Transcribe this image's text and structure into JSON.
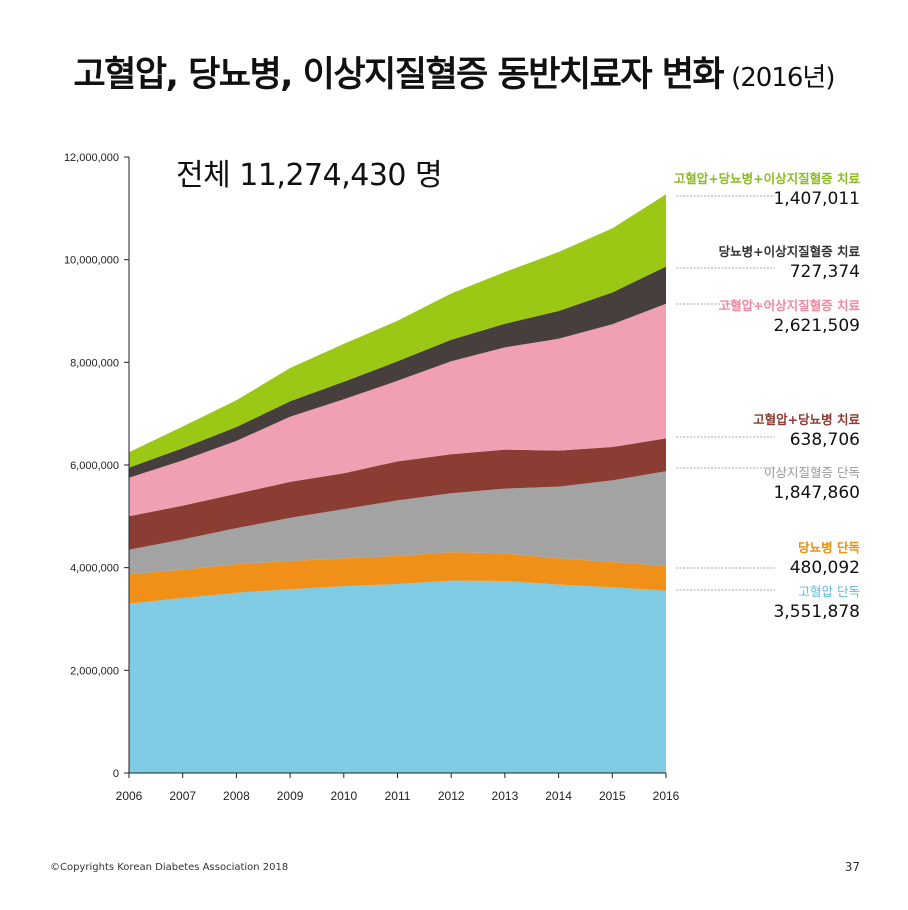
{
  "title": {
    "main": "고혈압, 당뇨병, 이상지질혈증 동반치료자 변화",
    "year": "(2016년)"
  },
  "total_label": "전체 11,274,430 명",
  "footer": "©Copyrights Korean Diabetes Association 2018",
  "page_number": "37",
  "chart_data": {
    "type": "area",
    "stacked": true,
    "x": [
      2006,
      2007,
      2008,
      2009,
      2010,
      2011,
      2012,
      2013,
      2014,
      2015,
      2016
    ],
    "ylim": [
      0,
      12000000
    ],
    "yticks": [
      "0",
      "2,000,000",
      "4,000,000",
      "6,000,000",
      "8,000,000",
      "10,000,000",
      "12,000,000"
    ],
    "grid": false,
    "legend_position": "right",
    "series": [
      {
        "name": "고혈압 단독",
        "value_label": "3,551,878",
        "color": "#7ecbe3",
        "values": [
          3300000,
          3410000,
          3510000,
          3580000,
          3640000,
          3680000,
          3750000,
          3740000,
          3670000,
          3620000,
          3551878
        ]
      },
      {
        "name": "당뇨병 단독",
        "value_label": "480,092",
        "color": "#f09018",
        "values": [
          570000,
          550000,
          560000,
          550000,
          540000,
          550000,
          550000,
          540000,
          510000,
          490000,
          480092
        ]
      },
      {
        "name": "이상지질혈증 단독",
        "value_label": "1,847,860",
        "color": "#a3a3a3",
        "values": [
          480000,
          590000,
          700000,
          840000,
          960000,
          1080000,
          1150000,
          1260000,
          1400000,
          1590000,
          1847860
        ]
      },
      {
        "name": "고혈압+당뇨병 치료",
        "value_label": "638,706",
        "color": "#8b3d34",
        "values": [
          650000,
          660000,
          670000,
          700000,
          700000,
          760000,
          760000,
          760000,
          700000,
          650000,
          638706
        ]
      },
      {
        "name": "고혈압+이상지질혈증 치료",
        "value_label": "2,621,509",
        "color": "#f0a0b2",
        "values": [
          750000,
          880000,
          1030000,
          1270000,
          1440000,
          1570000,
          1810000,
          1990000,
          2180000,
          2390000,
          2621509
        ]
      },
      {
        "name": "당뇨병+이상지질혈증 치료",
        "value_label": "727,374",
        "color": "#463f3d",
        "values": [
          200000,
          240000,
          270000,
          300000,
          340000,
          380000,
          420000,
          460000,
          540000,
          620000,
          727374
        ]
      },
      {
        "name": "고혈압+당뇨병+이상지질혈증 치료",
        "value_label": "1,407,011",
        "color": "#9bc815",
        "values": [
          300000,
          420000,
          520000,
          650000,
          740000,
          790000,
          900000,
          1010000,
          1150000,
          1250000,
          1407011
        ]
      }
    ]
  },
  "legend": [
    {
      "name": "고혈압+당뇨병+이상지질혈증 치료",
      "value": "1,407,011",
      "color": "#8cbd1e"
    },
    {
      "name": "당뇨병+이상지질혈증 치료",
      "value": "727,374",
      "color": "#333333"
    },
    {
      "name": "고혈압+이상지질혈증 치료",
      "value": "2,621,509",
      "color": "#f08aa2"
    },
    {
      "name": "고혈압+당뇨병 치료",
      "value": "638,706",
      "color": "#8b3d34"
    },
    {
      "name": "이상지질혈증 단독",
      "value": "1,847,860",
      "color": "#999999"
    },
    {
      "name": "당뇨병 단독",
      "value": "480,092",
      "color": "#e8900f"
    },
    {
      "name": "고혈압 단독",
      "value": "3,551,878",
      "color": "#5bbde0"
    }
  ]
}
